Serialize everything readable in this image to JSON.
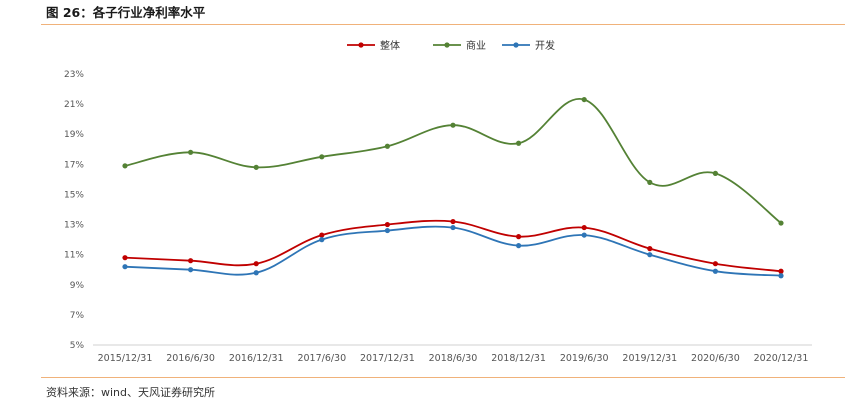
{
  "header": {
    "title": "图 26：各子行业净利率水平"
  },
  "footer": {
    "source": "资料来源：wind、天风证券研究所"
  },
  "chart_data": {
    "type": "line",
    "categories": [
      "2015/12/31",
      "2016/6/30",
      "2016/12/31",
      "2017/6/30",
      "2017/12/31",
      "2018/6/30",
      "2018/12/31",
      "2019/6/30",
      "2019/12/31",
      "2020/6/30",
      "2020/12/31"
    ],
    "series": [
      {
        "name": "整体",
        "color": "#c00000",
        "values": [
          10.8,
          10.6,
          10.4,
          12.3,
          13.0,
          13.2,
          12.2,
          12.8,
          11.4,
          10.4,
          9.9
        ]
      },
      {
        "name": "商业",
        "color": "#548235",
        "values": [
          16.9,
          17.8,
          16.8,
          17.5,
          18.2,
          19.6,
          18.4,
          21.3,
          15.8,
          16.4,
          13.1
        ]
      },
      {
        "name": "开发",
        "color": "#2e75b6",
        "values": [
          10.2,
          10.0,
          9.8,
          12.0,
          12.6,
          12.8,
          11.6,
          12.3,
          11.0,
          9.9,
          9.6
        ]
      }
    ],
    "yticks": [
      "5%",
      "7%",
      "9%",
      "11%",
      "13%",
      "15%",
      "17%",
      "19%",
      "21%",
      "23%"
    ],
    "ylim": [
      5,
      23
    ],
    "grid": false,
    "legend_position": "top-center"
  }
}
